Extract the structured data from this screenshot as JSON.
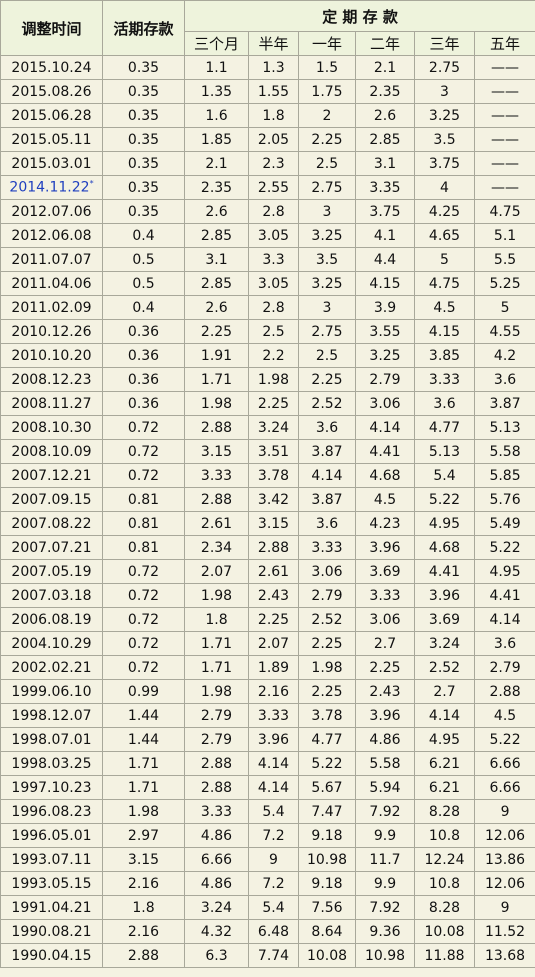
{
  "header": {
    "date": "调整时间",
    "demand": "活期存款",
    "fixed": "定 期 存 款",
    "terms": [
      "三个月",
      "半年",
      "一年",
      "二年",
      "三年",
      "五年"
    ]
  },
  "table": {
    "rows": [
      {
        "date": "2015.10.24",
        "demand": "0.35",
        "fixed": [
          "1.1",
          "1.3",
          "1.5",
          "2.1",
          "2.75",
          "——"
        ]
      },
      {
        "date": "2015.08.26",
        "demand": "0.35",
        "fixed": [
          "1.35",
          "1.55",
          "1.75",
          "2.35",
          "3",
          "——"
        ]
      },
      {
        "date": "2015.06.28",
        "demand": "0.35",
        "fixed": [
          "1.6",
          "1.8",
          "2",
          "2.6",
          "3.25",
          "——"
        ]
      },
      {
        "date": "2015.05.11",
        "demand": "0.35",
        "fixed": [
          "1.85",
          "2.05",
          "2.25",
          "2.85",
          "3.5",
          "——"
        ]
      },
      {
        "date": "2015.03.01",
        "demand": "0.35",
        "fixed": [
          "2.1",
          "2.3",
          "2.5",
          "3.1",
          "3.75",
          "——"
        ]
      },
      {
        "date": "2014.11.22",
        "note": "*",
        "demand": "0.35",
        "fixed": [
          "2.35",
          "2.55",
          "2.75",
          "3.35",
          "4",
          "——"
        ]
      },
      {
        "date": "2012.07.06",
        "demand": "0.35",
        "fixed": [
          "2.6",
          "2.8",
          "3",
          "3.75",
          "4.25",
          "4.75"
        ]
      },
      {
        "date": "2012.06.08",
        "demand": "0.4",
        "fixed": [
          "2.85",
          "3.05",
          "3.25",
          "4.1",
          "4.65",
          "5.1"
        ]
      },
      {
        "date": "2011.07.07",
        "demand": "0.5",
        "fixed": [
          "3.1",
          "3.3",
          "3.5",
          "4.4",
          "5",
          "5.5"
        ]
      },
      {
        "date": "2011.04.06",
        "demand": "0.5",
        "fixed": [
          "2.85",
          "3.05",
          "3.25",
          "4.15",
          "4.75",
          "5.25"
        ]
      },
      {
        "date": "2011.02.09",
        "demand": "0.4",
        "fixed": [
          "2.6",
          "2.8",
          "3",
          "3.9",
          "4.5",
          "5"
        ]
      },
      {
        "date": "2010.12.26",
        "demand": "0.36",
        "fixed": [
          "2.25",
          "2.5",
          "2.75",
          "3.55",
          "4.15",
          "4.55"
        ]
      },
      {
        "date": "2010.10.20",
        "demand": "0.36",
        "fixed": [
          "1.91",
          "2.2",
          "2.5",
          "3.25",
          "3.85",
          "4.2"
        ]
      },
      {
        "date": "2008.12.23",
        "demand": "0.36",
        "fixed": [
          "1.71",
          "1.98",
          "2.25",
          "2.79",
          "3.33",
          "3.6"
        ]
      },
      {
        "date": "2008.11.27",
        "demand": "0.36",
        "fixed": [
          "1.98",
          "2.25",
          "2.52",
          "3.06",
          "3.6",
          "3.87"
        ]
      },
      {
        "date": "2008.10.30",
        "demand": "0.72",
        "fixed": [
          "2.88",
          "3.24",
          "3.6",
          "4.14",
          "4.77",
          "5.13"
        ]
      },
      {
        "date": "2008.10.09",
        "demand": "0.72",
        "fixed": [
          "3.15",
          "3.51",
          "3.87",
          "4.41",
          "5.13",
          "5.58"
        ]
      },
      {
        "date": "2007.12.21",
        "demand": "0.72",
        "fixed": [
          "3.33",
          "3.78",
          "4.14",
          "4.68",
          "5.4",
          "5.85"
        ]
      },
      {
        "date": "2007.09.15",
        "demand": "0.81",
        "fixed": [
          "2.88",
          "3.42",
          "3.87",
          "4.5",
          "5.22",
          "5.76"
        ]
      },
      {
        "date": "2007.08.22",
        "demand": "0.81",
        "fixed": [
          "2.61",
          "3.15",
          "3.6",
          "4.23",
          "4.95",
          "5.49"
        ]
      },
      {
        "date": "2007.07.21",
        "demand": "0.81",
        "fixed": [
          "2.34",
          "2.88",
          "3.33",
          "3.96",
          "4.68",
          "5.22"
        ]
      },
      {
        "date": "2007.05.19",
        "demand": "0.72",
        "fixed": [
          "2.07",
          "2.61",
          "3.06",
          "3.69",
          "4.41",
          "4.95"
        ]
      },
      {
        "date": "2007.03.18",
        "demand": "0.72",
        "fixed": [
          "1.98",
          "2.43",
          "2.79",
          "3.33",
          "3.96",
          "4.41"
        ]
      },
      {
        "date": "2006.08.19",
        "demand": "0.72",
        "fixed": [
          "1.8",
          "2.25",
          "2.52",
          "3.06",
          "3.69",
          "4.14"
        ]
      },
      {
        "date": "2004.10.29",
        "demand": "0.72",
        "fixed": [
          "1.71",
          "2.07",
          "2.25",
          "2.7",
          "3.24",
          "3.6"
        ]
      },
      {
        "date": "2002.02.21",
        "demand": "0.72",
        "fixed": [
          "1.71",
          "1.89",
          "1.98",
          "2.25",
          "2.52",
          "2.79"
        ]
      },
      {
        "date": "1999.06.10",
        "demand": "0.99",
        "fixed": [
          "1.98",
          "2.16",
          "2.25",
          "2.43",
          "2.7",
          "2.88"
        ]
      },
      {
        "date": "1998.12.07",
        "demand": "1.44",
        "fixed": [
          "2.79",
          "3.33",
          "3.78",
          "3.96",
          "4.14",
          "4.5"
        ]
      },
      {
        "date": "1998.07.01",
        "demand": "1.44",
        "fixed": [
          "2.79",
          "3.96",
          "4.77",
          "4.86",
          "4.95",
          "5.22"
        ]
      },
      {
        "date": "1998.03.25",
        "demand": "1.71",
        "fixed": [
          "2.88",
          "4.14",
          "5.22",
          "5.58",
          "6.21",
          "6.66"
        ]
      },
      {
        "date": "1997.10.23",
        "demand": "1.71",
        "fixed": [
          "2.88",
          "4.14",
          "5.67",
          "5.94",
          "6.21",
          "6.66"
        ]
      },
      {
        "date": "1996.08.23",
        "demand": "1.98",
        "fixed": [
          "3.33",
          "5.4",
          "7.47",
          "7.92",
          "8.28",
          "9"
        ]
      },
      {
        "date": "1996.05.01",
        "demand": "2.97",
        "fixed": [
          "4.86",
          "7.2",
          "9.18",
          "9.9",
          "10.8",
          "12.06"
        ]
      },
      {
        "date": "1993.07.11",
        "demand": "3.15",
        "fixed": [
          "6.66",
          "9",
          "10.98",
          "11.7",
          "12.24",
          "13.86"
        ]
      },
      {
        "date": "1993.05.15",
        "demand": "2.16",
        "fixed": [
          "4.86",
          "7.2",
          "9.18",
          "9.9",
          "10.8",
          "12.06"
        ]
      },
      {
        "date": "1991.04.21",
        "demand": "1.8",
        "fixed": [
          "3.24",
          "5.4",
          "7.56",
          "7.92",
          "8.28",
          "9"
        ]
      },
      {
        "date": "1990.08.21",
        "demand": "2.16",
        "fixed": [
          "4.32",
          "6.48",
          "8.64",
          "9.36",
          "10.08",
          "11.52"
        ]
      },
      {
        "date": "1990.04.15",
        "demand": "2.88",
        "fixed": [
          "6.3",
          "7.74",
          "10.08",
          "10.98",
          "11.88",
          "13.68"
        ]
      }
    ]
  }
}
